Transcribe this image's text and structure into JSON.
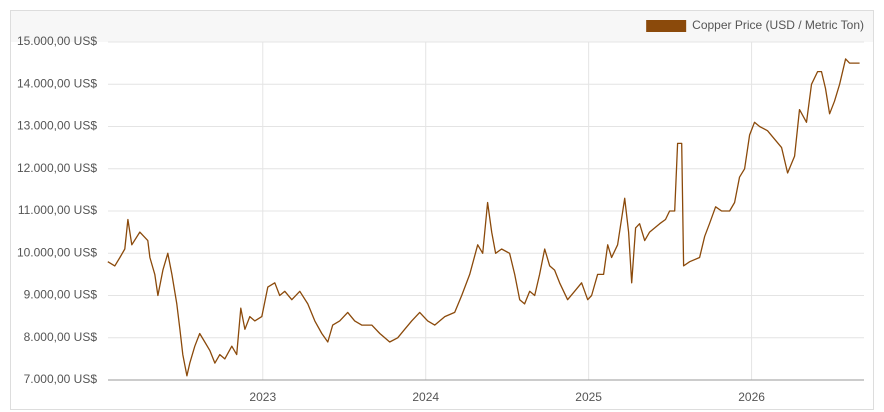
{
  "chart_data": {
    "type": "line",
    "legend_position": "top-right",
    "grid": true,
    "xlim": [
      2022.05,
      2026.69
    ],
    "xticks": [
      2023,
      2024,
      2025,
      2026
    ],
    "ylim": [
      7000,
      15000
    ],
    "yticks": [
      {
        "value": 7000,
        "label": "7.000,00 US$"
      },
      {
        "value": 8000,
        "label": "8.000,00 US$"
      },
      {
        "value": 9000,
        "label": "9.000,00 US$"
      },
      {
        "value": 10000,
        "label": "10.000,00 US$"
      },
      {
        "value": 11000,
        "label": "11.000,00 US$"
      },
      {
        "value": 12000,
        "label": "12.000,00 US$"
      },
      {
        "value": 13000,
        "label": "13.000,00 US$"
      },
      {
        "value": 14000,
        "label": "14.000,00 US$"
      },
      {
        "value": 15000,
        "label": "15.000,00 US$"
      }
    ],
    "x": [
      2022.049,
      2022.092,
      2022.123,
      2022.153,
      2022.172,
      2022.196,
      2022.245,
      2022.294,
      2022.307,
      2022.337,
      2022.356,
      2022.387,
      2022.417,
      2022.442,
      2022.472,
      2022.491,
      2022.509,
      2022.534,
      2022.552,
      2022.583,
      2022.613,
      2022.644,
      2022.675,
      2022.706,
      2022.736,
      2022.767,
      2022.81,
      2022.84,
      2022.865,
      2022.89,
      2022.92,
      2022.951,
      2022.994,
      2023.031,
      2023.074,
      2023.104,
      2023.135,
      2023.178,
      2023.227,
      2023.276,
      2023.319,
      2023.362,
      2023.399,
      2023.429,
      2023.472,
      2023.521,
      2023.564,
      2023.607,
      2023.669,
      2023.718,
      2023.779,
      2023.828,
      2023.871,
      2023.914,
      2023.963,
      2024.012,
      2024.055,
      2024.117,
      2024.178,
      2024.221,
      2024.27,
      2024.319,
      2024.35,
      2024.38,
      2024.405,
      2024.429,
      2024.466,
      2024.515,
      2024.546,
      2024.577,
      2024.607,
      2024.638,
      2024.669,
      2024.699,
      2024.73,
      2024.761,
      2024.791,
      2024.822,
      2024.871,
      2024.914,
      2024.957,
      2024.994,
      2025.018,
      2025.055,
      2025.092,
      2025.117,
      2025.141,
      2025.178,
      2025.221,
      2025.245,
      2025.264,
      2025.288,
      2025.313,
      2025.344,
      2025.374,
      2025.436,
      2025.472,
      2025.497,
      2025.528,
      2025.546,
      2025.571,
      2025.583,
      2025.62,
      2025.681,
      2025.712,
      2025.742,
      2025.779,
      2025.816,
      2025.865,
      2025.896,
      2025.926,
      2025.957,
      2025.988,
      2026.018,
      2026.049,
      2026.098,
      2026.141,
      2026.184,
      2026.221,
      2026.264,
      2026.294,
      2026.337,
      2026.368,
      2026.405,
      2026.429,
      2026.454,
      2026.479,
      2026.509,
      2026.54,
      2026.577,
      2026.601,
      2026.632,
      2026.663
    ],
    "series": [
      {
        "name": "Copper Price (USD / Metric Ton)",
        "color": "#8b4a0b",
        "values": [
          9800,
          9700,
          9900,
          10100,
          10800,
          10200,
          10500,
          10300,
          9900,
          9500,
          9000,
          9600,
          10000,
          9500,
          8800,
          8200,
          7600,
          7100,
          7400,
          7800,
          8100,
          7900,
          7700,
          7400,
          7600,
          7500,
          7800,
          7600,
          8700,
          8200,
          8500,
          8400,
          8500,
          9200,
          9300,
          9000,
          9100,
          8900,
          9100,
          8800,
          8400,
          8100,
          7900,
          8300,
          8400,
          8600,
          8400,
          8300,
          8300,
          8100,
          7900,
          8000,
          8200,
          8400,
          8600,
          8400,
          8300,
          8500,
          8600,
          9000,
          9500,
          10200,
          10000,
          11200,
          10500,
          10000,
          10100,
          10000,
          9500,
          8900,
          8800,
          9100,
          9000,
          9500,
          10100,
          9700,
          9600,
          9300,
          8900,
          9100,
          9300,
          8900,
          9000,
          9500,
          9500,
          10200,
          9900,
          10200,
          11300,
          10500,
          9300,
          10600,
          10700,
          10300,
          10500,
          10700,
          10800,
          11000,
          11000,
          12600,
          12600,
          9700,
          9800,
          9900,
          10400,
          10700,
          11100,
          11000,
          11000,
          11200,
          11800,
          12000,
          12800,
          13100,
          13000,
          12900,
          12700,
          12500,
          11900,
          12300,
          13400,
          13100,
          14000,
          14300,
          14300,
          13900,
          13300,
          13600,
          14000,
          14600,
          14500,
          14500,
          14500
        ]
      }
    ]
  }
}
